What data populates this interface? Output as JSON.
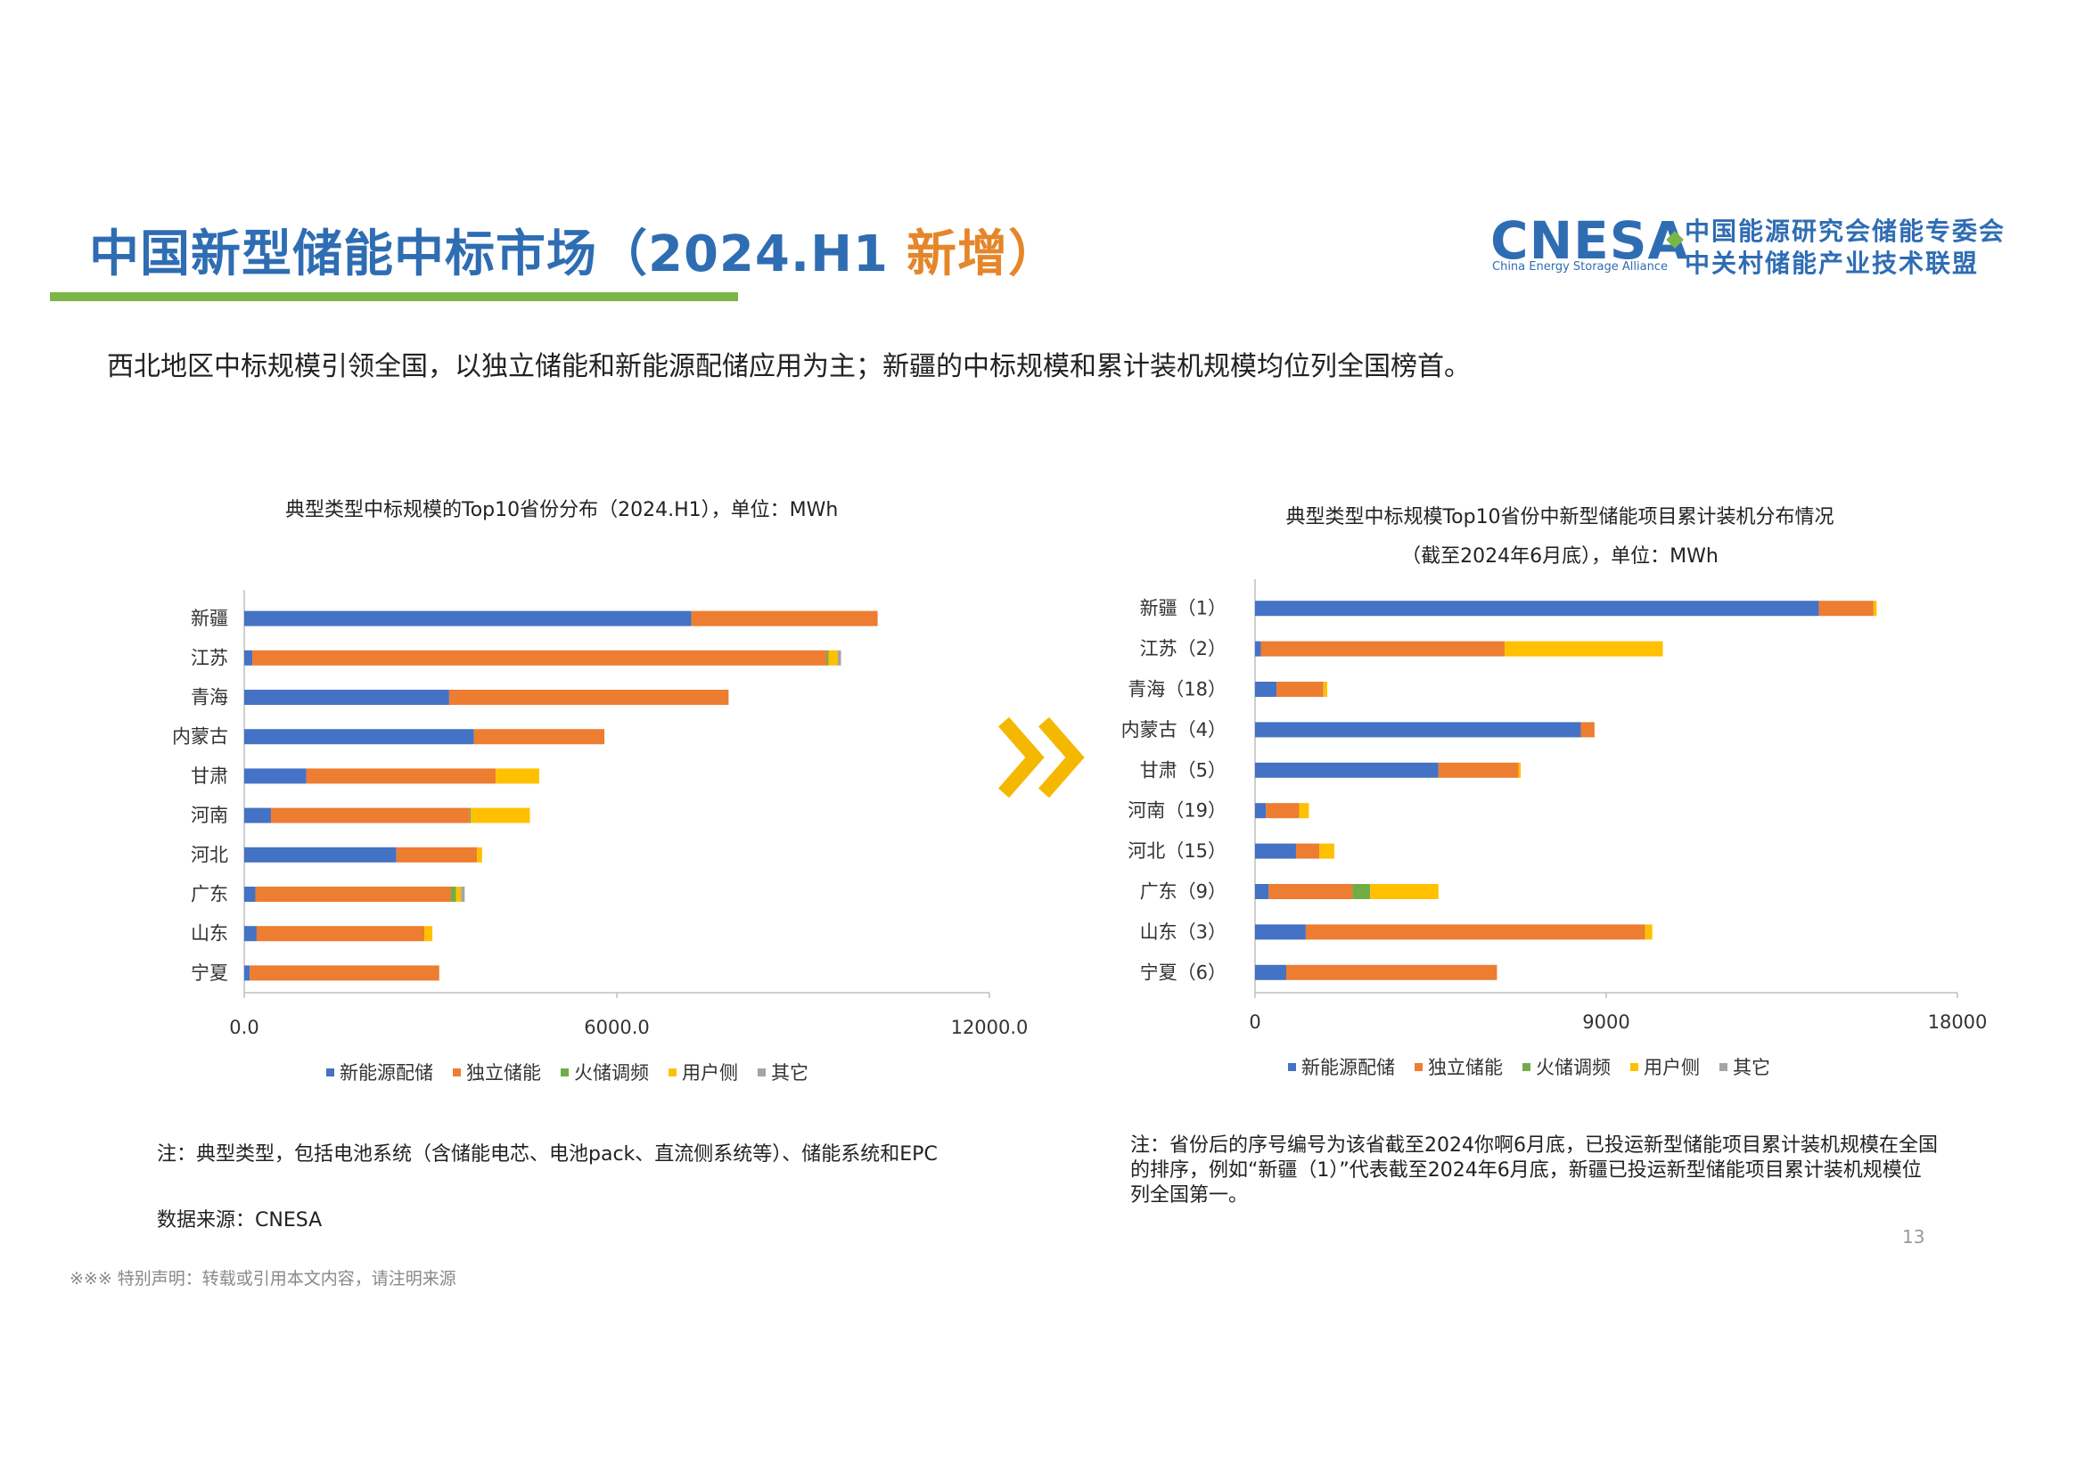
{
  "header": {
    "title_main": "中国新型储能中标市场（2024.H1",
    "title_highlight": "新增）",
    "subtitle": "西北地区中标规模引领全国，以独立储能和新能源配储应用为主；新疆的中标规模和累计装机规模均位列全国榜首。"
  },
  "logo": {
    "word": "CNESA",
    "sub": "China Energy Storage Alliance",
    "cn_line1": "中国能源研究会储能专委会",
    "cn_line2": "中关村储能产业技术联盟"
  },
  "colors": {
    "title": "#2f6db3",
    "highlight": "#e5862a",
    "title_bar": "#7ab648",
    "arrow": "#f5b800",
    "series": [
      "#4472c4",
      "#ed7d31",
      "#70ad47",
      "#ffc000",
      "#a5a5a5"
    ]
  },
  "legend": [
    "新能源配储",
    "独立储能",
    "火储调频",
    "用户侧",
    "其它"
  ],
  "chart_data": [
    {
      "type": "bar",
      "orientation": "horizontal",
      "stacked": true,
      "title": "典型类型中标规模的Top10省份分布（2024.H1），单位：MWh",
      "categories": [
        "新疆",
        "江苏",
        "青海",
        "内蒙古",
        "甘肃",
        "河南",
        "河北",
        "广东",
        "山东",
        "宁夏"
      ],
      "series": [
        {
          "name": "新能源配储",
          "values": [
            7200,
            130,
            3300,
            3700,
            1000,
            430,
            2450,
            180,
            200,
            90
          ]
        },
        {
          "name": "独立储能",
          "values": [
            3000,
            9250,
            4500,
            2100,
            3050,
            3200,
            1300,
            3150,
            2700,
            3050
          ]
        },
        {
          "name": "火储调频",
          "values": [
            0,
            30,
            0,
            0,
            0,
            20,
            0,
            80,
            0,
            0
          ]
        },
        {
          "name": "用户侧",
          "values": [
            0,
            150,
            0,
            0,
            700,
            950,
            80,
            80,
            130,
            0
          ]
        },
        {
          "name": "其它",
          "values": [
            0,
            50,
            0,
            0,
            0,
            0,
            0,
            60,
            0,
            0
          ]
        }
      ],
      "xlim": [
        0,
        12000
      ],
      "xticks": [
        "0.0",
        "6000.0",
        "12000.0"
      ],
      "legend_position": "bottom"
    },
    {
      "type": "bar",
      "orientation": "horizontal",
      "stacked": true,
      "title": "典型类型中标规模Top10省份中新型储能项目累计装机分布情况",
      "title_line2": "（截至2024年6月底），单位：MWh",
      "categories": [
        "新疆（1）",
        "江苏（2）",
        "青海（18）",
        "内蒙古（4）",
        "甘肃（5）",
        "河南（19）",
        "河北（15）",
        "广东（9）",
        "山东（3）",
        "宁夏（6）"
      ],
      "series": [
        {
          "name": "新能源配储",
          "values": [
            14450,
            150,
            550,
            8350,
            4700,
            280,
            1050,
            350,
            1300,
            800
          ]
        },
        {
          "name": "独立储能",
          "values": [
            1400,
            6250,
            1200,
            350,
            2050,
            850,
            600,
            2150,
            8700,
            5400
          ]
        },
        {
          "name": "火储调频",
          "values": [
            0,
            0,
            0,
            0,
            0,
            0,
            0,
            450,
            0,
            0
          ]
        },
        {
          "name": "用户侧",
          "values": [
            80,
            4050,
            100,
            0,
            60,
            250,
            380,
            1750,
            180,
            0
          ]
        },
        {
          "name": "其它",
          "values": [
            0,
            0,
            0,
            0,
            0,
            0,
            0,
            0,
            0,
            0
          ]
        }
      ],
      "xlim": [
        0,
        18000
      ],
      "xticks": [
        "0",
        "9000",
        "18000"
      ],
      "legend_position": "bottom"
    }
  ],
  "notes": {
    "left_note": "注：典型类型，包括电池系统（含储能电芯、电池pack、直流侧系统等）、储能系统和EPC",
    "left_source": "数据来源：CNESA",
    "right_note_lines": [
      "注：省份后的序号编号为该省截至2024你啊6月底，已投运新型储能项目累计装机规模在全国",
      "的排序，例如“新疆（1）”代表截至2024年6月底，新疆已投运新型储能项目累计装机规模位",
      "列全国第一。"
    ]
  },
  "page_number": "13",
  "disclaimer": "※※※ 特别声明：转载或引用本文内容，请注明来源"
}
